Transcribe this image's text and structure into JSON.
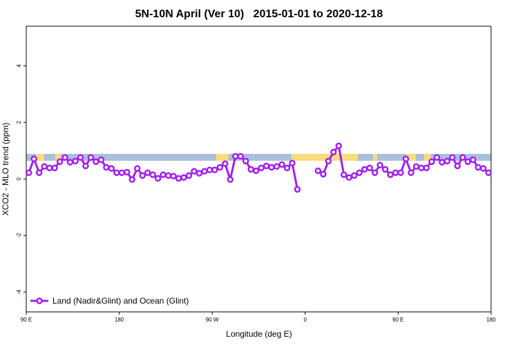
{
  "chart_data": {
    "type": "line",
    "title": "5N-10N April (Ver 10)   2015-01-01 to 2020-12-18",
    "x_label": "Longitude (deg E)",
    "y_label": "XCO2 - MLO trend (ppm)",
    "xlim": [
      90,
      540
    ],
    "ylim": [
      -4.7,
      5.4
    ],
    "xticks": [
      {
        "value": 90,
        "label": "90 E"
      },
      180,
      {
        "value": 270,
        "label": "90 W"
      },
      {
        "value": 360,
        "label": "0"
      },
      {
        "value": 450,
        "label": "90 E"
      },
      {
        "value": 540,
        "label": "180"
      }
    ],
    "yticks": [
      -4,
      -2,
      0,
      2,
      4
    ],
    "legend": "bottom-left",
    "x": [
      92.5,
      97.5,
      102.5,
      107.5,
      112.5,
      117.5,
      122.5,
      127.5,
      132.5,
      137.5,
      142.5,
      147.5,
      152.5,
      157.5,
      162.5,
      167.5,
      172.5,
      177.5,
      182.5,
      187.5,
      192.5,
      197.5,
      202.5,
      207.5,
      212.5,
      217.5,
      222.5,
      227.5,
      232.5,
      237.5,
      242.5,
      247.5,
      252.5,
      257.5,
      262.5,
      267.5,
      272.5,
      277.5,
      282.5,
      287.5,
      292.5,
      297.5,
      302.5,
      307.5,
      312.5,
      317.5,
      322.5,
      327.5,
      332.5,
      337.5,
      342.5,
      347.5,
      352.5,
      357.5,
      362.5,
      367.5,
      372.5,
      377.5,
      382.5,
      387.5,
      392.5,
      397.5,
      402.5,
      407.5,
      412.5,
      417.5,
      422.5,
      427.5,
      432.5,
      437.5,
      442.5,
      447.5,
      452.5,
      457.5,
      462.5,
      467.5,
      472.5,
      477.5,
      482.5,
      487.5,
      492.5,
      497.5,
      502.5,
      507.5,
      512.5,
      517.5,
      522.5,
      527.5,
      532.5,
      537.5
    ],
    "series": [
      {
        "name": "Land (Nadir&Glint) and Ocean (Glint)",
        "color": "#a020f0",
        "values": [
          0.22,
          0.71,
          0.22,
          0.44,
          0.39,
          0.39,
          0.61,
          0.76,
          0.59,
          0.63,
          0.76,
          0.46,
          0.76,
          0.61,
          0.68,
          0.41,
          0.37,
          0.22,
          0.22,
          0.24,
          -0.02,
          0.37,
          0.12,
          0.22,
          0.15,
          0.02,
          0.15,
          0.12,
          0.1,
          0.02,
          0.05,
          0.12,
          0.27,
          0.2,
          0.27,
          0.32,
          0.32,
          0.41,
          0.54,
          -0.02,
          0.8,
          0.8,
          0.63,
          0.34,
          0.29,
          0.39,
          0.46,
          0.41,
          0.44,
          0.51,
          0.39,
          0.56,
          -0.37,
          null,
          null,
          null,
          0.29,
          0.17,
          0.63,
          0.95,
          1.17,
          0.15,
          0.05,
          0.12,
          0.22,
          0.34,
          0.39,
          0.22,
          0.49,
          0.34,
          0.15,
          0.22,
          0.22,
          0.71,
          0.22,
          0.44,
          0.39,
          0.39,
          0.61,
          0.76,
          0.59,
          0.63,
          0.76,
          0.46,
          0.76,
          0.61,
          0.68,
          0.41,
          0.37,
          0.22
        ]
      }
    ]
  }
}
